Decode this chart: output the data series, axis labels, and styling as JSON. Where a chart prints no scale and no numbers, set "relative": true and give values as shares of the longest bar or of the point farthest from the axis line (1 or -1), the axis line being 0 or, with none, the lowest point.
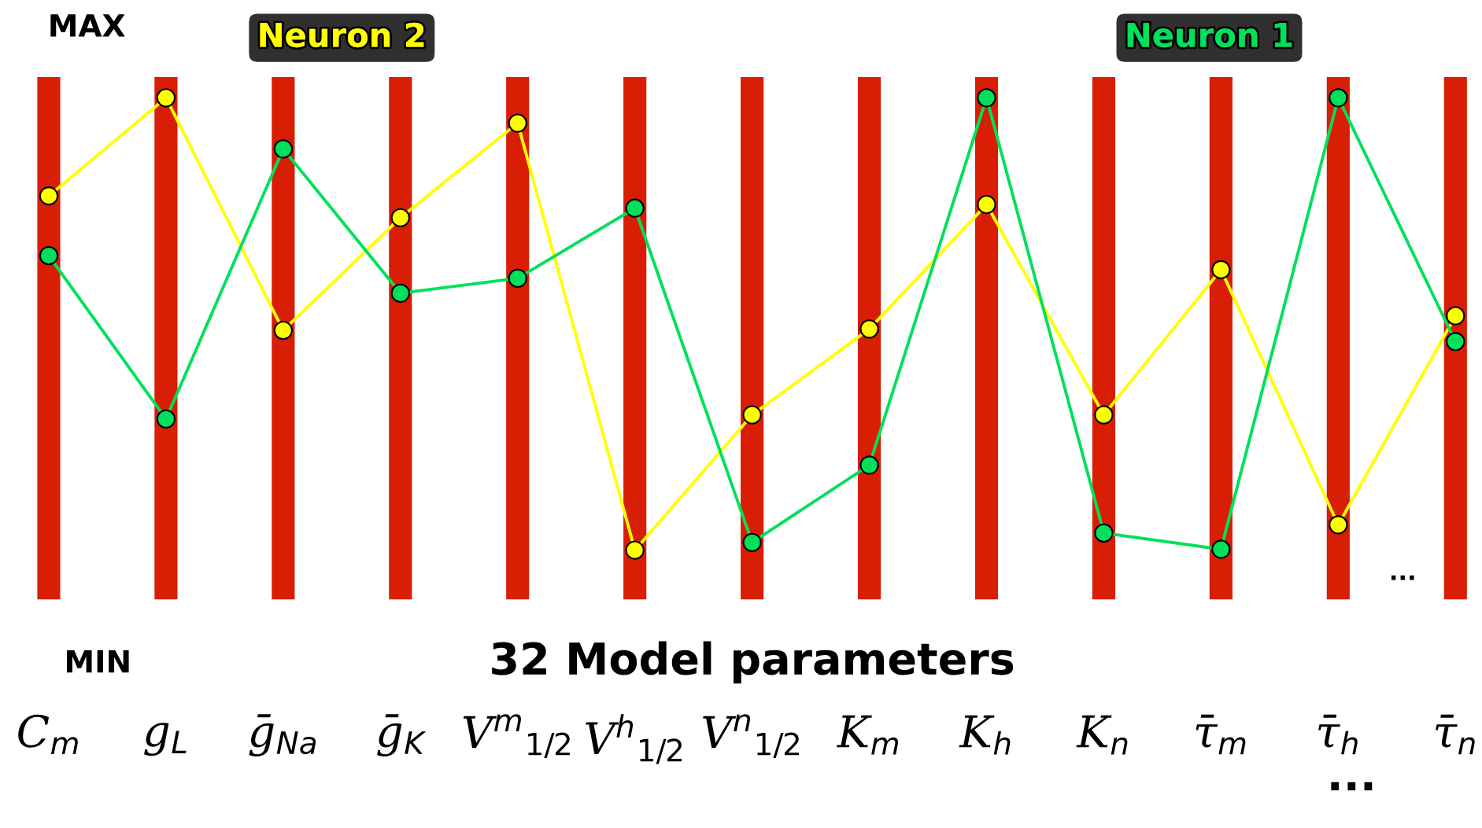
{
  "chart_data": {
    "type": "line",
    "relative": true,
    "xlabel": "32 Model parameters",
    "categories": [
      "C$_{m}$",
      "g$_{L}$",
      "ḡ$_{Na}$",
      "ḡ$_{K}$",
      "V$^{m}$$_{1/2}$",
      "V$^{h}$$_{1/2}$",
      "V$^{n}$$_{1/2}$",
      "K$_{m}$",
      "K$_{h}$",
      "K$_{n}$",
      "τ̄$_{m}$",
      "τ̄$_{h}$",
      "τ̄$_{n}$"
    ],
    "series": [
      {
        "name": "Neuron 2",
        "color": "#ffff00",
        "values": [
          0.783,
          1,
          0.486,
          0.735,
          0.944,
          0,
          0.299,
          0.489,
          0.764,
          0.299,
          0.62,
          0.056,
          0.518
        ]
      },
      {
        "name": "Neuron 1",
        "color": "#00e05a",
        "values": [
          0.651,
          0.29,
          0.887,
          0.568,
          0.601,
          0.756,
          0.017,
          0.188,
          1,
          0.038,
          0.002,
          1,
          0.461
        ]
      }
    ],
    "marker": "circle",
    "line_style": "solid",
    "grid": "x",
    "legend": "top",
    "annotations": [
      "MAX",
      "MIN",
      "...",
      "..."
    ]
  }
}
